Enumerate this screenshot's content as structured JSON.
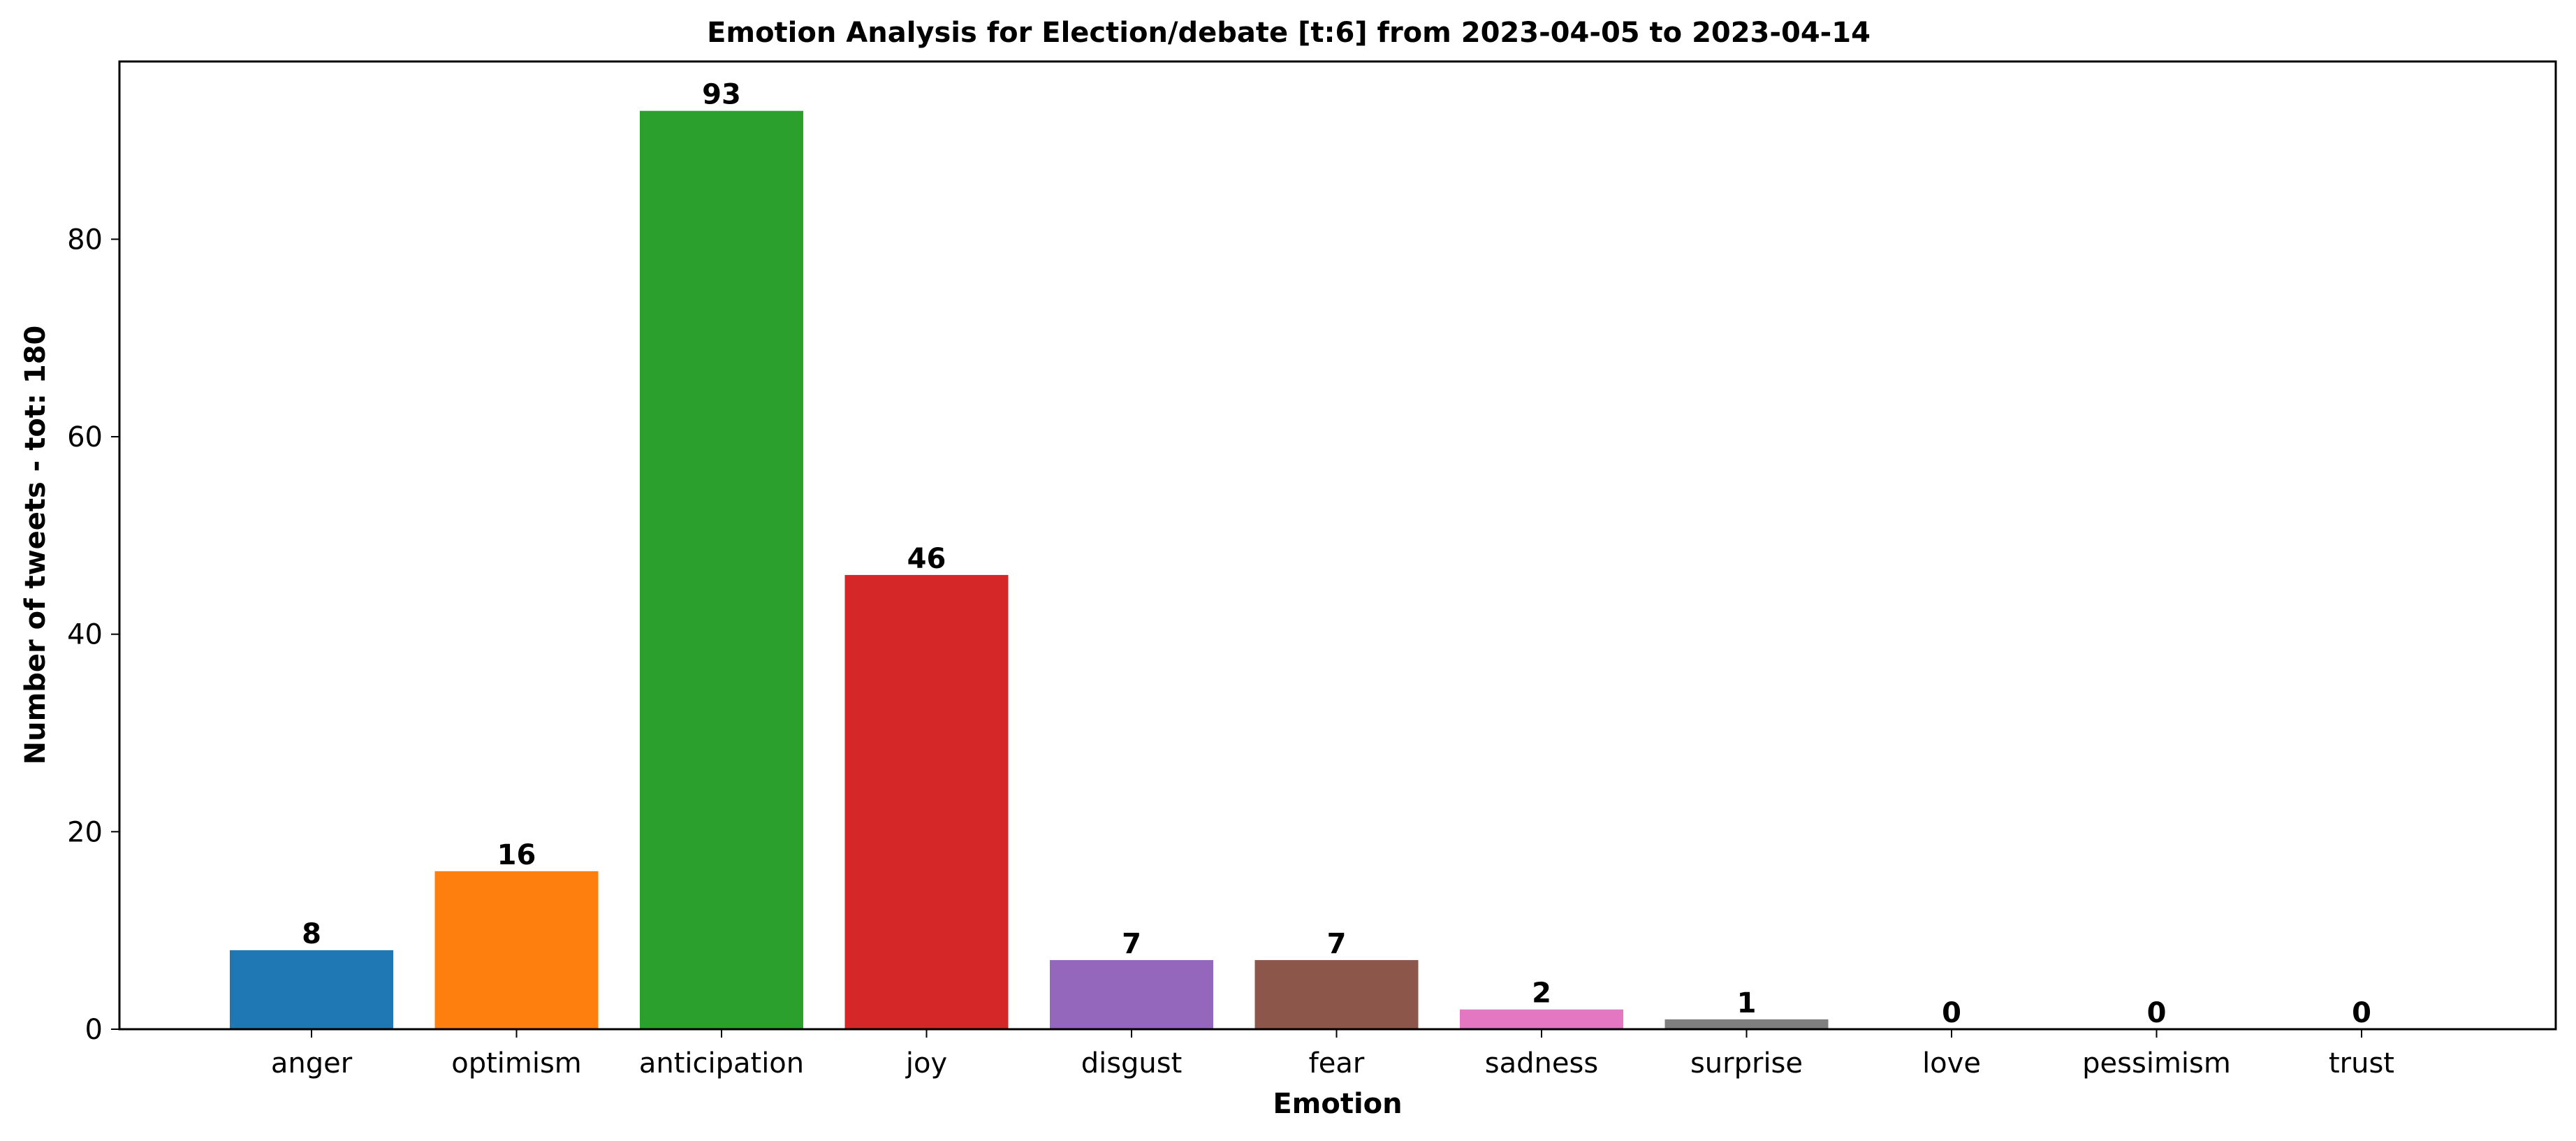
{
  "chart_data": {
    "type": "bar",
    "title": "Emotion Analysis for Election/debate [t:6] from 2023-04-05 to 2023-04-14",
    "xlabel": "Emotion",
    "ylabel": "Number of tweets - tot: 180",
    "categories": [
      "anger",
      "optimism",
      "anticipation",
      "joy",
      "disgust",
      "fear",
      "sadness",
      "surprise",
      "love",
      "pessimism",
      "trust"
    ],
    "values": [
      8,
      16,
      93,
      46,
      7,
      7,
      2,
      1,
      0,
      0,
      0
    ],
    "colors": [
      "#1f77b4",
      "#ff7f0e",
      "#2ca02c",
      "#d62728",
      "#9467bd",
      "#8c564b",
      "#e377c2",
      "#7f7f7f",
      "#bcbd22",
      "#17becf",
      "#1f77b4"
    ],
    "ylim": [
      0,
      98
    ],
    "yticks": [
      0,
      20,
      40,
      60,
      80
    ],
    "grid": false,
    "legend": false
  }
}
